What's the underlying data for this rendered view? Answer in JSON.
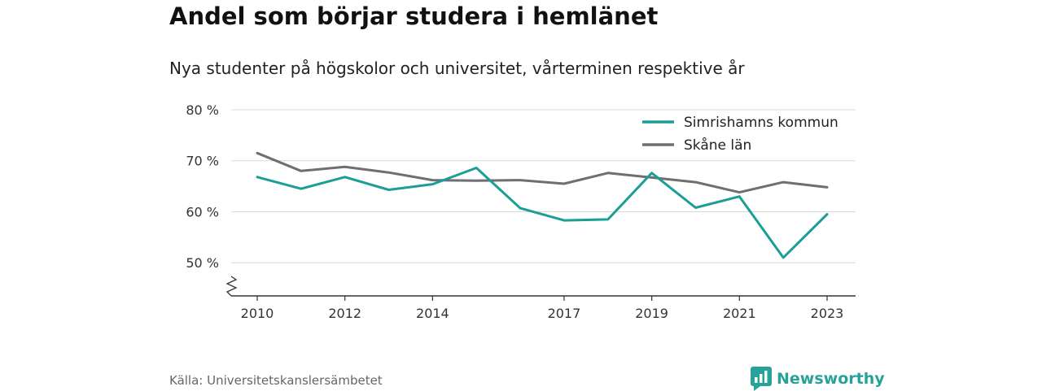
{
  "header": {
    "title": "Andel som börjar studera i hemlänet",
    "subtitle": "Nya studenter på högskolor och universitet, vårterminen respektive år"
  },
  "footer": {
    "source": "Källa: Universitetskanslersämbetet",
    "brand": "Newsworthy",
    "brand_icon": "newsworthy-logo-icon"
  },
  "colors": {
    "Simrishamns kommun": "#1a9e96",
    "Skåne län": "#6e6e73",
    "brand": "#27a298",
    "grid": "#d9d9d9"
  },
  "chart_data": {
    "type": "line",
    "title": "Andel som börjar studera i hemlänet",
    "subtitle": "Nya studenter på högskolor och universitet, vårterminen respektive år",
    "x": [
      2010,
      2011,
      2012,
      2013,
      2014,
      2015,
      2016,
      2017,
      2018,
      2019,
      2020,
      2021,
      2022,
      2023
    ],
    "x_ticks": [
      2010,
      2012,
      2014,
      2017,
      2019,
      2021,
      2023
    ],
    "y_ticks": [
      50,
      60,
      70,
      80
    ],
    "y_tick_labels": [
      "50 %",
      "60 %",
      "70 %",
      "80 %"
    ],
    "ylim": [
      43.5,
      80
    ],
    "y_axis_break": true,
    "grid": "horizontal",
    "legend_position": "top-right",
    "series": [
      {
        "name": "Simrishamns kommun",
        "values": [
          66.8,
          64.5,
          66.8,
          64.3,
          65.4,
          68.6,
          60.7,
          58.3,
          58.5,
          67.6,
          60.8,
          63.0,
          51.0,
          59.5
        ]
      },
      {
        "name": "Skåne län",
        "values": [
          71.5,
          68.0,
          68.8,
          67.7,
          66.2,
          66.1,
          66.2,
          65.5,
          67.6,
          66.7,
          65.8,
          63.8,
          65.8,
          64.8
        ]
      }
    ]
  }
}
